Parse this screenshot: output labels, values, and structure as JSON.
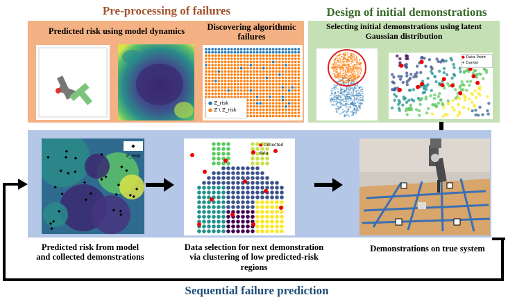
{
  "titles": {
    "preprocessing": "Pre-processing of failures",
    "design": "Design of initial demonstrations",
    "sequential": "Sequential failure prediction"
  },
  "preprocessing": {
    "predicted_risk_title": "Predicted risk using model dynamics",
    "algorithmic_title_line1": "Discovering algorithmic",
    "algorithmic_title_line2": "failures",
    "legend_item1": "Z_risk",
    "legend_item2": "Z \\ Z_risk"
  },
  "design": {
    "subtitle_line1": "Selecting initial demonstrations using latent",
    "subtitle_line2": "Gaussian distribution",
    "legend_data_point": "Data Point",
    "legend_center": "Center"
  },
  "bottom": {
    "risk_plot_legend": "Z_exp",
    "collected_legend": "Collected data",
    "caption_left_line1": "Predicted risk from model",
    "caption_left_line2": "and collected demonstrations",
    "caption_mid_line1": "Data selection for next demonstration",
    "caption_mid_line2": "via clustering of low predicted-risk",
    "caption_mid_line3": "regions",
    "caption_right": "Demonstrations on true system"
  },
  "colors": {
    "preprocessing_title": "#a0522d",
    "design_title": "#3a6b2a",
    "sequential_title": "#1f4e79",
    "orange_panel": "#f4b183",
    "green_panel": "#c5e0b4",
    "blue_panel": "#b4c7e7"
  },
  "icons": [
    "arrow-right-icon",
    "arrow-down-icon",
    "feedback-loop-arrow-icon"
  ]
}
